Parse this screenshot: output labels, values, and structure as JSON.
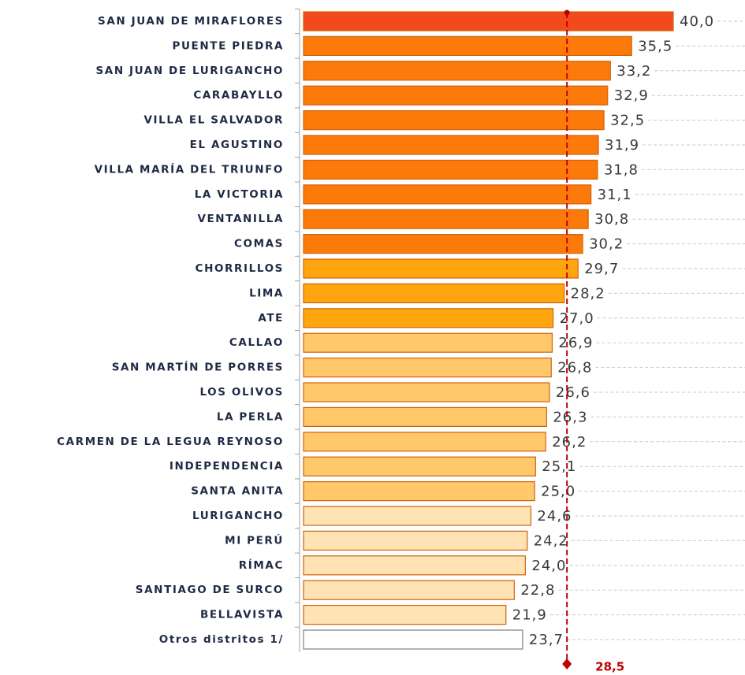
{
  "chart_data": {
    "type": "bar",
    "orientation": "horizontal",
    "categories": [
      "SAN JUAN DE MIRAFLORES",
      "PUENTE PIEDRA",
      "SAN JUAN DE LURIGANCHO",
      "CARABAYLLO",
      "VILLA EL SALVADOR",
      "EL AGUSTINO",
      "VILLA MARÍA DEL TRIUNFO",
      "LA VICTORIA",
      "VENTANILLA",
      "COMAS",
      "CHORRILLOS",
      "LIMA",
      "ATE",
      "CALLAO",
      "SAN MARTÍN DE PORRES",
      "LOS OLIVOS",
      "LA PERLA",
      "CARMEN DE LA LEGUA REYNOSO",
      "INDEPENDENCIA",
      "SANTA ANITA",
      "LURIGANCHO",
      "MI PERÚ",
      "RÍMAC",
      "SANTIAGO DE SURCO",
      "BELLAVISTA",
      "Otros distritos 1/"
    ],
    "values": [
      40.0,
      35.5,
      33.2,
      32.9,
      32.5,
      31.9,
      31.8,
      31.1,
      30.8,
      30.2,
      29.7,
      28.2,
      27.0,
      26.9,
      26.8,
      26.6,
      26.3,
      26.2,
      25.1,
      25.0,
      24.6,
      24.2,
      24.0,
      22.8,
      21.9,
      23.7
    ],
    "value_labels": [
      "40,0",
      "35,5",
      "33,2",
      "32,9",
      "32,5",
      "31,9",
      "31,8",
      "31,1",
      "30,8",
      "30,2",
      "29,7",
      "28,2",
      "27,0",
      "26,9",
      "26,8",
      "26,6",
      "26,3",
      "26,2",
      "25,1",
      "25,0",
      "24,6",
      "24,2",
      "24,0",
      "22,8",
      "21,9",
      "23,7"
    ],
    "colors": [
      "#f24a1c",
      "#fb7a0a",
      "#fb7a0a",
      "#fb7a0a",
      "#fb7a0a",
      "#fb7a0a",
      "#fb7a0a",
      "#fb7a0a",
      "#fb7a0a",
      "#fb7a0a",
      "#ffa60f",
      "#ffa60f",
      "#ffa60f",
      "#ffc86a",
      "#ffc86a",
      "#ffc86a",
      "#ffc86a",
      "#ffc86a",
      "#ffc86a",
      "#ffc86a",
      "#ffe3b4",
      "#ffe3b4",
      "#ffe3b4",
      "#ffe3b4",
      "#ffe3b4",
      "#ffffff"
    ],
    "xlim": [
      0,
      40
    ],
    "reference": {
      "value": 28.5,
      "label": "28,5",
      "color": "#c00000"
    }
  }
}
